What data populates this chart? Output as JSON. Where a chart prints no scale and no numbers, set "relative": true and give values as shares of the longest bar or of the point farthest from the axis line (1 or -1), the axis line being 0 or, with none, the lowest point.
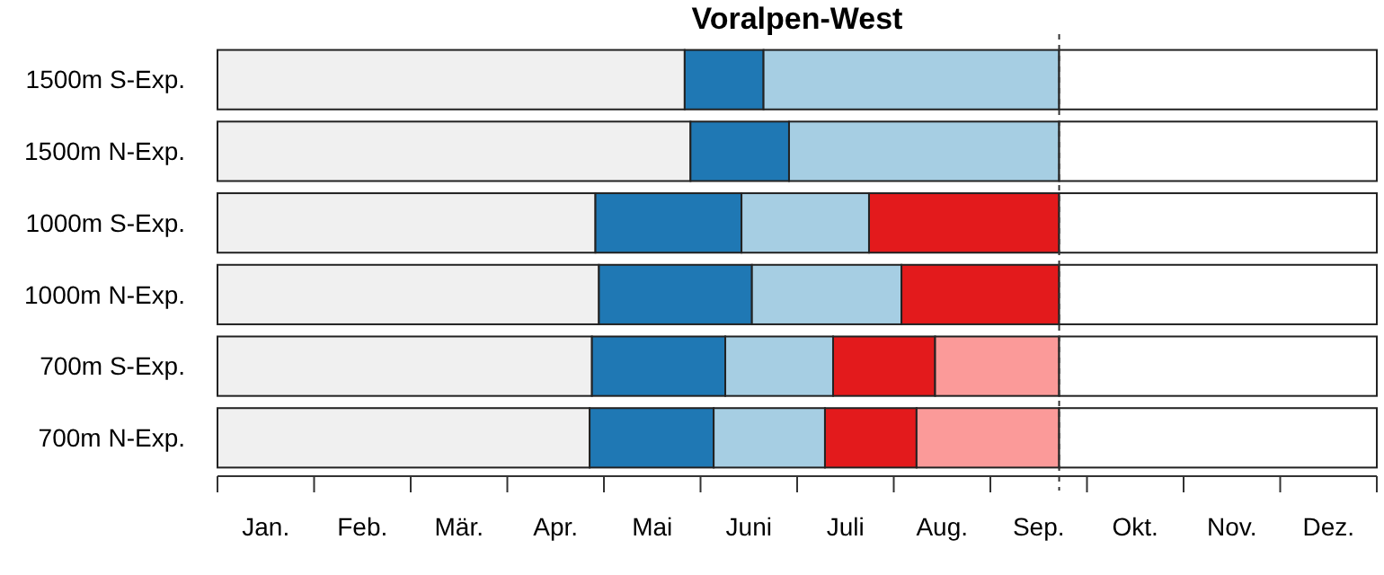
{
  "chart_data": {
    "type": "bar",
    "title": "Voralpen-West",
    "orientation": "horizontal",
    "stacked": true,
    "relative": true,
    "categories": [
      "1500m S-Exp.",
      "1500m N-Exp.",
      "1000m S-Exp.",
      "1000m N-Exp.",
      "700m S-Exp.",
      "700m N-Exp."
    ],
    "series": [
      {
        "color": "#f0f0f0",
        "values": [
          0.403,
          0.408,
          0.326,
          0.329,
          0.323,
          0.321
        ]
      },
      {
        "color": "#1f78b4",
        "values": [
          0.068,
          0.085,
          0.126,
          0.132,
          0.115,
          0.107
        ]
      },
      {
        "color": "#a6cee3",
        "values": [
          0.255,
          0.233,
          0.11,
          0.129,
          0.093,
          0.096
        ]
      },
      {
        "color": "#e31a1c",
        "values": [
          null,
          null,
          0.164,
          0.136,
          0.088,
          0.079
        ]
      },
      {
        "color": "#fb9a99",
        "values": [
          null,
          null,
          null,
          null,
          0.107,
          0.123
        ]
      },
      {
        "color": "#ffffff",
        "values": [
          0.274,
          0.274,
          0.274,
          0.274,
          0.274,
          0.274
        ]
      }
    ],
    "annotations": [
      "Jan.",
      "Feb.",
      "Mär.",
      "Apr.",
      "Mai",
      "Juni",
      "Juli",
      "Aug.",
      "Sep.",
      "Okt.",
      "Nov.",
      "Dez."
    ],
    "ref_lines": [
      {
        "axis": "x",
        "value": 0.726,
        "line_style": "dashed",
        "color": "#333333"
      }
    ]
  }
}
